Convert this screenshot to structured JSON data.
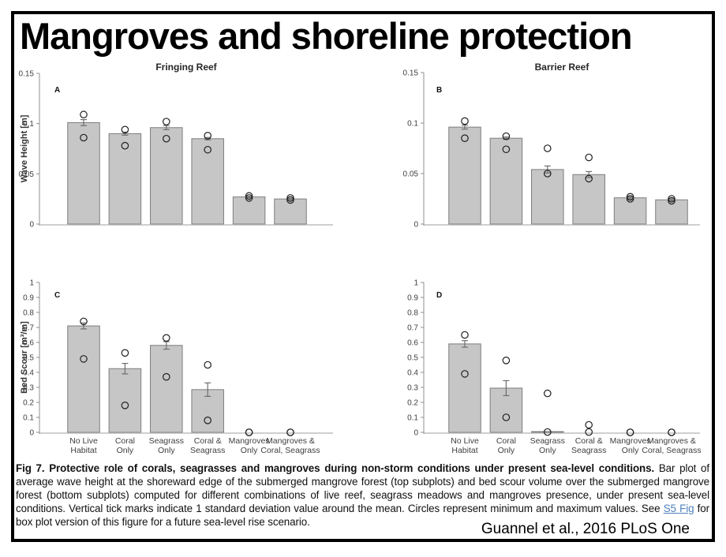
{
  "page": {
    "title": "Mangroves and shoreline protection",
    "citation": "Guannel et al., 2016 PLoS One"
  },
  "caption": {
    "lead_bold": "Fig 7. Protective role of corals, seagrasses and mangroves during non-storm conditions under present sea-level conditions.",
    "body_before_link": " Bar plot of average wave height at the shoreward edge of the submerged mangrove forest (top subplots) and bed scour volume over the submerged mangrove forest (bottom subplots) computed for different combinations of live reef, seagrass meadows and mangroves presence, under present sea-level conditions. Vertical tick marks indicate 1 standard deviation value around the mean. Circles represent minimum and maximum values. See ",
    "link_text": "S5 Fig",
    "body_after_link": " for box plot version of this figure for a future sea-level rise scenario."
  },
  "colors": {
    "bar_fill": "#c6c6c6",
    "bar_edge": "#7d7d7d",
    "axis_line": "#8f8f8f",
    "xaxis_line": "#cfcfcf",
    "errorbar": "#6e6e6e",
    "marker_stroke": "#1f1f1f",
    "link": "#4f81bd"
  },
  "chart_data": [
    {
      "panel": "A",
      "type": "bar",
      "title": "Fringing Reef",
      "ylabel": "Wave Height [m]",
      "ylim": [
        0,
        0.15
      ],
      "ytick_values": [
        0,
        0.05,
        0.1,
        0.15
      ],
      "yticks": [
        "0",
        "0.05",
        "0.1",
        "0.15"
      ],
      "categories": [
        "No Live\nHabitat",
        "Coral\nOnly",
        "Seagrass\nOnly",
        "Coral &\nSeagrass",
        "Mangroves\nOnly",
        "Mangroves &\nCoral, Seagrass"
      ],
      "show_category_labels": false,
      "values": [
        0.101,
        0.09,
        0.096,
        0.085,
        0.027,
        0.025
      ],
      "std": [
        0.003,
        0.0015,
        0.002,
        0.0012,
        0.0007,
        0.0007
      ],
      "max": [
        0.109,
        0.094,
        0.102,
        0.088,
        0.028,
        0.026
      ],
      "min": [
        0.086,
        0.078,
        0.085,
        0.074,
        0.026,
        0.024
      ]
    },
    {
      "panel": "B",
      "type": "bar",
      "title": "Barrier Reef",
      "ylabel": "",
      "ylim": [
        0,
        0.15
      ],
      "ytick_values": [
        0,
        0.05,
        0.1,
        0.15
      ],
      "yticks": [
        "0",
        "0.05",
        "0.1",
        "0.15"
      ],
      "categories": [
        "No Live\nHabitat",
        "Coral\nOnly",
        "Seagrass\nOnly",
        "Coral &\nSeagrass",
        "Mangroves\nOnly",
        "Mangroves &\nCoral, Seagrass"
      ],
      "show_category_labels": false,
      "values": [
        0.096,
        0.085,
        0.054,
        0.049,
        0.026,
        0.024
      ],
      "std": [
        0.002,
        0.0012,
        0.0035,
        0.003,
        0.001,
        0.001
      ],
      "max": [
        0.102,
        0.087,
        0.075,
        0.066,
        0.027,
        0.025
      ],
      "min": [
        0.085,
        0.074,
        0.05,
        0.045,
        0.025,
        0.023
      ]
    },
    {
      "panel": "C",
      "type": "bar",
      "title": "",
      "ylabel": "Bed Scour [m³/m]",
      "ylim": [
        0,
        1
      ],
      "ytick_values": [
        0,
        0.1,
        0.2,
        0.3,
        0.4,
        0.5,
        0.6,
        0.7,
        0.8,
        0.9,
        1
      ],
      "yticks": [
        "0",
        "0.1",
        "0.2",
        "0.3",
        "0.4",
        "0.5",
        "0.6",
        "0.7",
        "0.8",
        "0.9",
        "1"
      ],
      "categories": [
        "No Live\nHabitat",
        "Coral\nOnly",
        "Seagrass\nOnly",
        "Coral &\nSeagrass",
        "Mangroves\nOnly",
        "Mangroves &\nCoral, Seagrass"
      ],
      "show_category_labels": true,
      "values": [
        0.71,
        0.425,
        0.58,
        0.285,
        0,
        0
      ],
      "std": [
        0.02,
        0.035,
        0.025,
        0.045,
        0,
        0
      ],
      "max": [
        0.74,
        0.53,
        0.63,
        0.45,
        0,
        0
      ],
      "min": [
        0.49,
        0.18,
        0.37,
        0.08,
        0,
        0
      ]
    },
    {
      "panel": "D",
      "type": "bar",
      "title": "",
      "ylabel": "",
      "ylim": [
        0,
        1
      ],
      "ytick_values": [
        0,
        0.1,
        0.2,
        0.3,
        0.4,
        0.5,
        0.6,
        0.7,
        0.8,
        0.9,
        1
      ],
      "yticks": [
        "0",
        "0.1",
        "0.2",
        "0.3",
        "0.4",
        "0.5",
        "0.6",
        "0.7",
        "0.8",
        "0.9",
        "1"
      ],
      "categories": [
        "No Live\nHabitat",
        "Coral\nOnly",
        "Seagrass\nOnly",
        "Coral &\nSeagrass",
        "Mangroves\nOnly",
        "Mangroves &\nCoral, Seagrass"
      ],
      "show_category_labels": true,
      "values": [
        0.59,
        0.295,
        0.005,
        0,
        0,
        0
      ],
      "std": [
        0.022,
        0.05,
        0,
        0,
        0,
        0
      ],
      "max": [
        0.65,
        0.48,
        0.26,
        0.05,
        0,
        0
      ],
      "min": [
        0.39,
        0.1,
        0.002,
        0.002,
        0,
        0
      ]
    }
  ]
}
